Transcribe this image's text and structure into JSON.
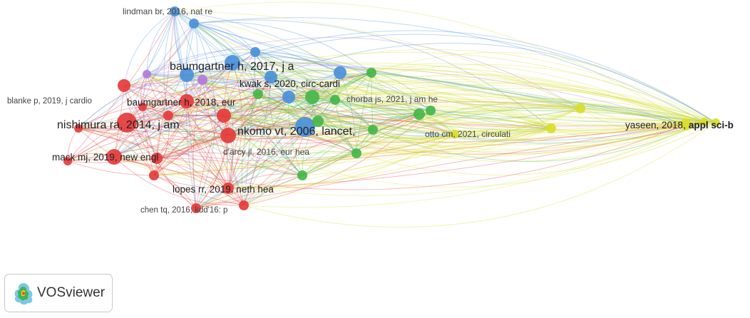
{
  "app": {
    "name": "VOSviewer",
    "logo_icon": "vosviewer-logo-icon"
  },
  "clusters": {
    "red": "#e53b3b",
    "green": "#45b649",
    "blue": "#4a90d9",
    "yellow": "#d8dd2a",
    "purple": "#b07ae0"
  },
  "labels": {
    "lindman": "lindman br, 2016, nat re",
    "baumgartner2017": "baumgartner h, 2017, j a",
    "kwak": "kwak s, 2020, circ-cardi",
    "blanke": "blanke p, 2019, j cardio",
    "baumgartner2018": "baumgartner h, 2018, eur",
    "chorba": "chorba js, 2021, j am he",
    "nishimura": "nishimura ra, 2014, j am",
    "nkomo": "nkomo vt, 2006, lancet,",
    "yaseen_a": "yaseen, 2018,",
    "yaseen_b": "appl sci-b",
    "otto": "otto cm, 2021, circulati",
    "darcy": "d'arcy jl, 2016, eur hea",
    "mack": "mack mj, 2019, new engl",
    "lopes": "lopes rr, 2019, neth hea",
    "chen": "chen tq, 2016, kdd'16: p"
  }
}
